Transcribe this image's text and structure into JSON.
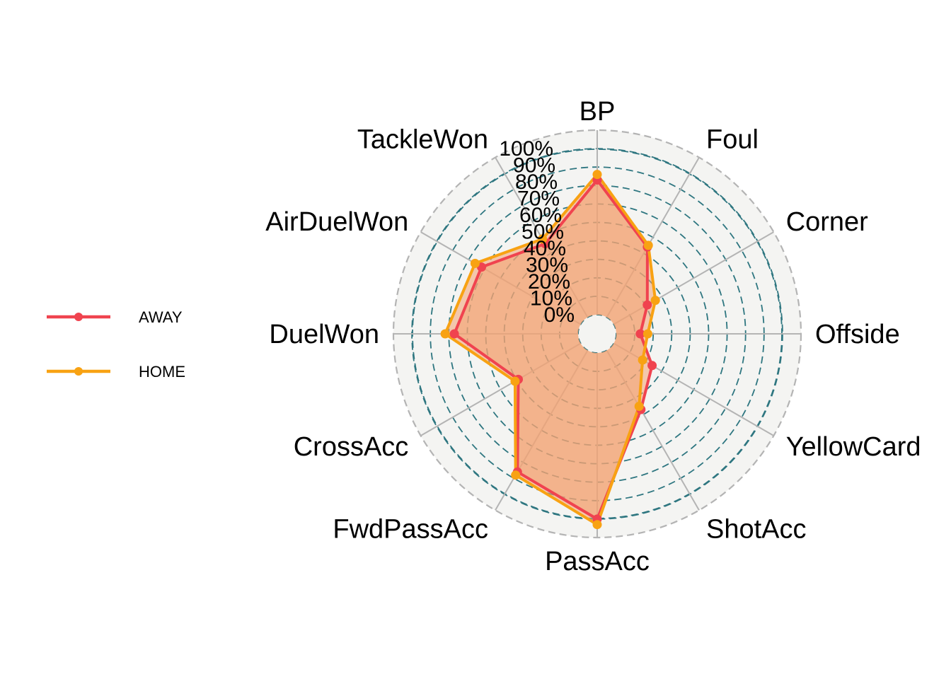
{
  "chart_data": {
    "type": "radar",
    "axes": [
      "BP",
      "Foul",
      "Corner",
      "Offside",
      "YellowCard",
      "ShotAcc",
      "PassAcc",
      "FwdPassAcc",
      "CrossAcc",
      "DuelWon",
      "AirDuelWon",
      "TackleWon"
    ],
    "radial_ticks": [
      "0%",
      "10%",
      "20%",
      "30%",
      "40%",
      "50%",
      "60%",
      "70%",
      "80%",
      "90%",
      "100%"
    ],
    "rlim": [
      -0.1,
      1.0
    ],
    "grid": true,
    "legend_position": "left",
    "series": [
      {
        "name": "AWAY",
        "color": "#f0434f",
        "values": [
          0.73,
          0.44,
          0.21,
          0.13,
          0.24,
          0.37,
          0.9,
          0.76,
          0.39,
          0.67,
          0.62,
          0.46
        ]
      },
      {
        "name": "HOME",
        "color": "#f8a213",
        "values": [
          0.76,
          0.45,
          0.26,
          0.17,
          0.18,
          0.35,
          0.93,
          0.78,
          0.41,
          0.72,
          0.66,
          0.49
        ]
      }
    ],
    "fill_color": "#f3a273",
    "grid_color": "#2e7680",
    "panel_color": "#f4f4f2"
  }
}
